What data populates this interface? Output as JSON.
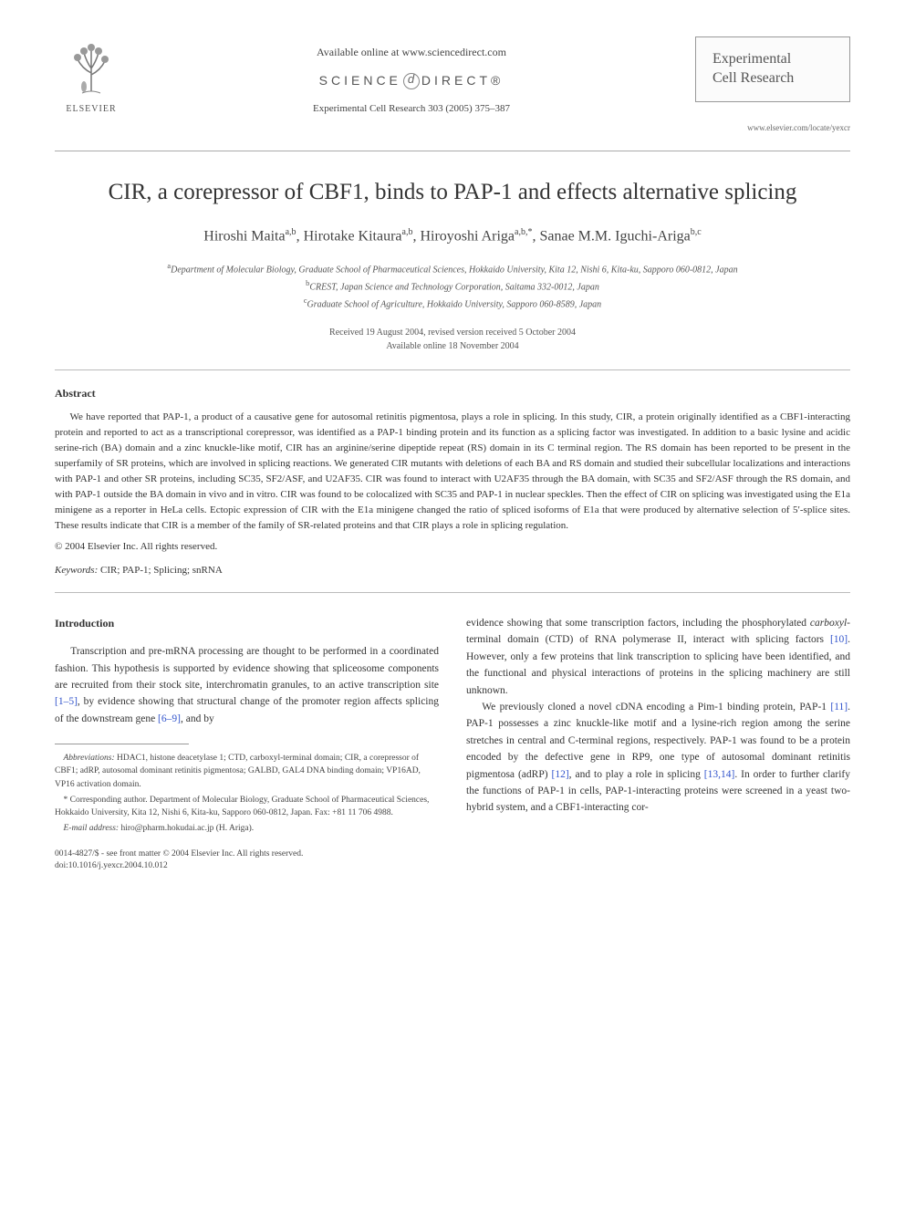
{
  "header": {
    "available_text": "Available online at www.sciencedirect.com",
    "science_direct": "SCIENCE",
    "science_direct2": "DIRECT®",
    "journal_ref": "Experimental Cell Research 303 (2005) 375–387",
    "publisher": "ELSEVIER",
    "journal_name_line1": "Experimental",
    "journal_name_line2": "Cell Research",
    "journal_url": "www.elsevier.com/locate/yexcr"
  },
  "article": {
    "title": "CIR, a corepressor of CBF1, binds to PAP-1 and effects alternative splicing",
    "authors_html": "Hiroshi Maita<sup>a,b</sup>, Hirotake Kitaura<sup>a,b</sup>, Hiroyoshi Ariga<sup>a,b,*</sup>, Sanae M.M. Iguchi-Ariga<sup>b,c</sup>",
    "affiliations": {
      "a": "Department of Molecular Biology, Graduate School of Pharmaceutical Sciences, Hokkaido University, Kita 12, Nishi 6, Kita-ku, Sapporo 060-0812, Japan",
      "b": "CREST, Japan Science and Technology Corporation, Saitama 332-0012, Japan",
      "c": "Graduate School of Agriculture, Hokkaido University, Sapporo 060-8589, Japan"
    },
    "received": "Received 19 August 2004, revised version received 5 October 2004",
    "available": "Available online 18 November 2004"
  },
  "abstract": {
    "heading": "Abstract",
    "text": "We have reported that PAP-1, a product of a causative gene for autosomal retinitis pigmentosa, plays a role in splicing. In this study, CIR, a protein originally identified as a CBF1-interacting protein and reported to act as a transcriptional corepressor, was identified as a PAP-1 binding protein and its function as a splicing factor was investigated. In addition to a basic lysine and acidic serine-rich (BA) domain and a zinc knuckle-like motif, CIR has an arginine/serine dipeptide repeat (RS) domain in its C terminal region. The RS domain has been reported to be present in the superfamily of SR proteins, which are involved in splicing reactions. We generated CIR mutants with deletions of each BA and RS domain and studied their subcellular localizations and interactions with PAP-1 and other SR proteins, including SC35, SF2/ASF, and U2AF35. CIR was found to interact with U2AF35 through the BA domain, with SC35 and SF2/ASF through the RS domain, and with PAP-1 outside the BA domain in vivo and in vitro. CIR was found to be colocalized with SC35 and PAP-1 in nuclear speckles. Then the effect of CIR on splicing was investigated using the E1a minigene as a reporter in HeLa cells. Ectopic expression of CIR with the E1a minigene changed the ratio of spliced isoforms of E1a that were produced by alternative selection of 5′-splice sites. These results indicate that CIR is a member of the family of SR-related proteins and that CIR plays a role in splicing regulation.",
    "copyright": "© 2004 Elsevier Inc. All rights reserved."
  },
  "keywords": {
    "label": "Keywords:",
    "text": "CIR; PAP-1; Splicing; snRNA"
  },
  "introduction": {
    "heading": "Introduction",
    "para1_left": "Transcription and pre-mRNA processing are thought to be performed in a coordinated fashion. This hypothesis is supported by evidence showing that spliceosome components are recruited from their stock site, interchromatin granules, to an active transcription site ",
    "ref1": "[1–5]",
    "para1_mid": ", by evidence showing that structural change of the promoter region affects splicing of the downstream gene ",
    "ref2": "[6–9]",
    "para1_end": ", and by",
    "para1_right_start": "evidence showing that some transcription factors, including the phosphorylated ",
    "carboxyl1": "carboxyl",
    "para1_right_mid": "-terminal domain (CTD) of RNA polymerase II, interact with splicing factors ",
    "ref3": "[10]",
    "para1_right_end": ". However, only a few proteins that link transcription to splicing have been identified, and the functional and physical interactions of proteins in the splicing machinery are still unknown.",
    "para2_start": "We previously cloned a novel cDNA encoding a Pim-1 binding protein, PAP-1 ",
    "ref4": "[11]",
    "para2_mid1": ". PAP-1 possesses a zinc knuckle-like motif and a lysine-rich region among the serine stretches in central and C-terminal regions, respectively. PAP-1 was found to be a protein encoded by the defective gene in RP9, one type of autosomal dominant retinitis pigmentosa (adRP) ",
    "ref5": "[12]",
    "para2_mid2": ", and to play a role in splicing ",
    "ref6": "[13,14]",
    "para2_end": ". In order to further clarify the functions of PAP-1 in cells, PAP-1-interacting proteins were screened in a yeast two-hybrid system, and a CBF1-interacting cor-"
  },
  "footnotes": {
    "abbrev_label": "Abbreviations:",
    "abbrev_text": "HDAC1, histone deacetylase 1; CTD, carboxyl-terminal domain; CIR, a corepressor of CBF1; adRP, autosomal dominant retinitis pigmentosa; GALBD, GAL4 DNA binding domain; VP16AD, VP16 activation domain.",
    "corresponding": "* Corresponding author. Department of Molecular Biology, Graduate School of Pharmaceutical Sciences, Hokkaido University, Kita 12, Nishi 6, Kita-ku, Sapporo 060-0812, Japan. Fax: +81 11 706 4988.",
    "email_label": "E-mail address:",
    "email": "hiro@pharm.hokudai.ac.jp (H. Ariga)."
  },
  "footer": {
    "line1": "0014-4827/$ - see front matter © 2004 Elsevier Inc. All rights reserved.",
    "line2": "doi:10.1016/j.yexcr.2004.10.012"
  },
  "colors": {
    "text": "#333333",
    "link": "#3355cc",
    "divider": "#aaaaaa",
    "background": "#ffffff"
  }
}
